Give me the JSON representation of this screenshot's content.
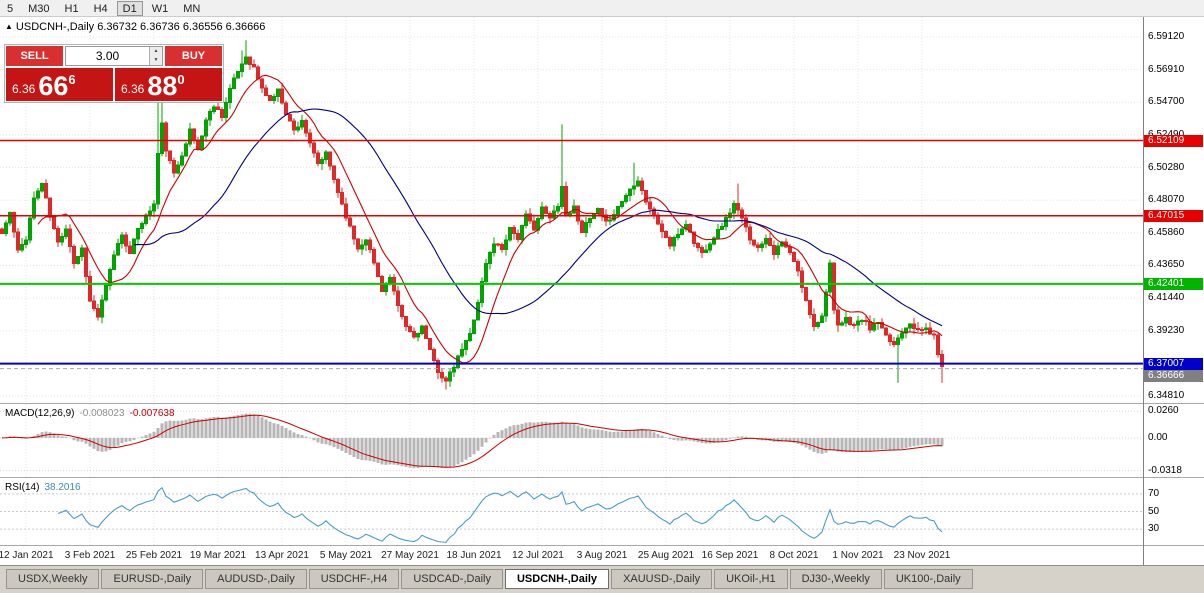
{
  "toolbar": {
    "timeframes": [
      {
        "label": "5",
        "active": false
      },
      {
        "label": "M30",
        "active": false
      },
      {
        "label": "H1",
        "active": false
      },
      {
        "label": "H4",
        "active": false
      },
      {
        "label": "D1",
        "active": true
      },
      {
        "label": "W1",
        "active": false
      },
      {
        "label": "MN",
        "active": false
      }
    ]
  },
  "chart_header": {
    "icon": "▲",
    "text": "USDCNH-,Daily 6.36732 6.36736 6.36556 6.36666"
  },
  "trade_panel": {
    "sell_label": "SELL",
    "buy_label": "BUY",
    "lot_size": "3.00",
    "spinner_up": "▲",
    "spinner_down": "▼",
    "sell_price": {
      "small": "6.36",
      "big": "66",
      "sup": "6"
    },
    "buy_price": {
      "small": "6.36",
      "big": "88",
      "sup": "0"
    }
  },
  "price_axis": {
    "ticks": [
      "6.59120",
      "6.56910",
      "6.54700",
      "6.52490",
      "6.50280",
      "6.48070",
      "6.45860",
      "6.43650",
      "6.41440",
      "6.39230",
      "6.37020",
      "6.34810"
    ],
    "badges": [
      {
        "label": "6.52109",
        "value": 6.52109,
        "color": "#e60000"
      },
      {
        "label": "6.47015",
        "value": 6.47015,
        "color": "#e60000"
      },
      {
        "label": "6.42401",
        "value": 6.42401,
        "color": "#00b400"
      },
      {
        "label": "6.37007",
        "value": 6.37007,
        "color": "#0000cc"
      },
      {
        "label": "6.36666",
        "value": 6.36666,
        "color": "#808080"
      }
    ]
  },
  "hlines": [
    {
      "price": 6.52109,
      "color": "#e60000",
      "w": 1.4
    },
    {
      "price": 6.47015,
      "color": "#e60000",
      "w": 1.4
    },
    {
      "price": 6.42401,
      "color": "#00cc00",
      "w": 2
    },
    {
      "price": 6.37007,
      "color": "#0000cc",
      "w": 2
    }
  ],
  "current_price_line": {
    "price": 6.36666,
    "color": "#aaaaaa"
  },
  "chart_data": {
    "type": "candlestick",
    "symbol": "USDCNH-",
    "timeframe": "Daily",
    "last_ohlc": {
      "open": 6.36732,
      "high": 6.36736,
      "low": 6.36556,
      "close": 6.36666
    },
    "num_candles": 236,
    "seed": 11,
    "noise": 0.003,
    "wick": 0.0045,
    "spacing": 4,
    "body_width": 3,
    "price_top": 6.6047,
    "price_bottom": 6.3434,
    "up_color": "#00a400",
    "down_color": "#e02828",
    "ma_fast": {
      "period": 10,
      "color": "#cc0000"
    },
    "ma_slow": {
      "period": 34,
      "color": "#000080"
    },
    "anchors": [
      [
        0,
        6.458
      ],
      [
        2,
        6.472
      ],
      [
        4,
        6.446
      ],
      [
        6,
        6.455
      ],
      [
        8,
        6.482
      ],
      [
        10,
        6.492
      ],
      [
        12,
        6.47
      ],
      [
        14,
        6.452
      ],
      [
        16,
        6.462
      ],
      [
        18,
        6.438
      ],
      [
        20,
        6.448
      ],
      [
        22,
        6.412
      ],
      [
        24,
        6.402
      ],
      [
        26,
        6.422
      ],
      [
        28,
        6.444
      ],
      [
        30,
        6.458
      ],
      [
        32,
        6.444
      ],
      [
        34,
        6.462
      ],
      [
        36,
        6.47
      ],
      [
        38,
        6.478
      ],
      [
        39,
        6.512
      ],
      [
        40,
        6.532
      ],
      [
        41,
        6.515
      ],
      [
        43,
        6.498
      ],
      [
        45,
        6.512
      ],
      [
        47,
        6.528
      ],
      [
        49,
        6.515
      ],
      [
        51,
        6.535
      ],
      [
        53,
        6.545
      ],
      [
        55,
        6.538
      ],
      [
        57,
        6.556
      ],
      [
        59,
        6.568
      ],
      [
        61,
        6.578
      ],
      [
        63,
        6.57
      ],
      [
        65,
        6.556
      ],
      [
        67,
        6.548
      ],
      [
        69,
        6.555
      ],
      [
        71,
        6.54
      ],
      [
        73,
        6.528
      ],
      [
        75,
        6.535
      ],
      [
        77,
        6.518
      ],
      [
        79,
        6.505
      ],
      [
        81,
        6.512
      ],
      [
        83,
        6.495
      ],
      [
        85,
        6.478
      ],
      [
        87,
        6.462
      ],
      [
        89,
        6.448
      ],
      [
        91,
        6.455
      ],
      [
        93,
        6.438
      ],
      [
        95,
        6.42
      ],
      [
        97,
        6.428
      ],
      [
        99,
        6.408
      ],
      [
        101,
        6.395
      ],
      [
        103,
        6.388
      ],
      [
        105,
        6.395
      ],
      [
        107,
        6.378
      ],
      [
        109,
        6.365
      ],
      [
        111,
        6.358
      ],
      [
        113,
        6.368
      ],
      [
        115,
        6.38
      ],
      [
        117,
        6.39
      ],
      [
        119,
        6.412
      ],
      [
        121,
        6.438
      ],
      [
        123,
        6.452
      ],
      [
        125,
        6.448
      ],
      [
        127,
        6.462
      ],
      [
        129,
        6.455
      ],
      [
        131,
        6.47
      ],
      [
        133,
        6.462
      ],
      [
        135,
        6.475
      ],
      [
        137,
        6.468
      ],
      [
        139,
        6.478
      ],
      [
        140,
        6.49
      ],
      [
        141,
        6.47
      ],
      [
        143,
        6.476
      ],
      [
        145,
        6.46
      ],
      [
        147,
        6.468
      ],
      [
        149,
        6.474
      ],
      [
        151,
        6.465
      ],
      [
        153,
        6.472
      ],
      [
        155,
        6.48
      ],
      [
        157,
        6.488
      ],
      [
        159,
        6.495
      ],
      [
        161,
        6.48
      ],
      [
        163,
        6.47
      ],
      [
        165,
        6.46
      ],
      [
        167,
        6.45
      ],
      [
        169,
        6.458
      ],
      [
        171,
        6.465
      ],
      [
        173,
        6.452
      ],
      [
        175,
        6.445
      ],
      [
        177,
        6.452
      ],
      [
        179,
        6.46
      ],
      [
        181,
        6.468
      ],
      [
        183,
        6.478
      ],
      [
        185,
        6.468
      ],
      [
        187,
        6.455
      ],
      [
        189,
        6.448
      ],
      [
        191,
        6.456
      ],
      [
        193,
        6.445
      ],
      [
        195,
        6.452
      ],
      [
        197,
        6.445
      ],
      [
        199,
        6.432
      ],
      [
        201,
        6.412
      ],
      [
        203,
        6.396
      ],
      [
        205,
        6.402
      ],
      [
        207,
        6.438
      ],
      [
        208,
        6.405
      ],
      [
        209,
        6.395
      ],
      [
        211,
        6.4
      ],
      [
        213,
        6.396
      ],
      [
        215,
        6.4
      ],
      [
        217,
        6.394
      ],
      [
        219,
        6.398
      ],
      [
        221,
        6.388
      ],
      [
        223,
        6.383
      ],
      [
        225,
        6.392
      ],
      [
        227,
        6.398
      ],
      [
        229,
        6.392
      ],
      [
        231,
        6.394
      ],
      [
        233,
        6.388
      ],
      [
        235,
        6.367
      ]
    ],
    "wick_overrides": [
      {
        "i": 39,
        "high": 6.552
      },
      {
        "i": 40,
        "high": 6.56
      },
      {
        "i": 60,
        "high": 6.582
      },
      {
        "i": 61,
        "high": 6.589
      },
      {
        "i": 111,
        "low": 6.3525
      },
      {
        "i": 140,
        "high": 6.532
      },
      {
        "i": 158,
        "high": 6.506
      },
      {
        "i": 184,
        "high": 6.492
      },
      {
        "i": 224,
        "low": 6.357
      },
      {
        "i": 235,
        "low": 6.357
      }
    ],
    "date_labels": [
      "12 Jan 2021",
      "3 Feb 2021",
      "25 Feb 2021",
      "19 Mar 2021",
      "13 Apr 2021",
      "5 May 2021",
      "27 May 2021",
      "18 Jun 2021",
      "12 Jul 2021",
      "3 Aug 2021",
      "25 Aug 2021",
      "16 Sep 2021",
      "8 Oct 2021",
      "1 Nov 2021",
      "23 Nov 2021"
    ],
    "label_start": 6,
    "label_step": 16
  },
  "macd": {
    "name": "MACD(12,26,9)",
    "value_main": "-0.008023",
    "value_signal": "-0.007638",
    "fast": 12,
    "slow": 26,
    "signal": 9,
    "axis": [
      {
        "label": "0.0260",
        "v": 0.026
      },
      {
        "label": "0.00",
        "v": 0
      },
      {
        "label": "-0.0318",
        "v": -0.0318
      }
    ],
    "range": [
      -0.038,
      0.033
    ],
    "colors": {
      "hist": "#b6b6b6",
      "signal": "#cc0000"
    }
  },
  "rsi": {
    "name": "RSI(14)",
    "value": "38.2016",
    "period": 14,
    "axis": [
      {
        "label": "70",
        "v": 70
      },
      {
        "label": "50",
        "v": 50
      },
      {
        "label": "30",
        "v": 30
      }
    ],
    "range": [
      12,
      88
    ],
    "color": "#4a9cc7"
  },
  "tabs": [
    {
      "label": "USDX,Weekly",
      "active": false
    },
    {
      "label": "EURUSD-,Daily",
      "active": false
    },
    {
      "label": "AUDUSD-,Daily",
      "active": false
    },
    {
      "label": "USDCHF-,H4",
      "active": false
    },
    {
      "label": "USDCAD-,Daily",
      "active": false
    },
    {
      "label": "USDCNH-,Daily",
      "active": true
    },
    {
      "label": "XAUUSD-,Daily",
      "active": false
    },
    {
      "label": "UKOil-,H1",
      "active": false
    },
    {
      "label": "DJ30-,Weekly",
      "active": false
    },
    {
      "label": "UK100-,Daily",
      "active": false
    }
  ]
}
